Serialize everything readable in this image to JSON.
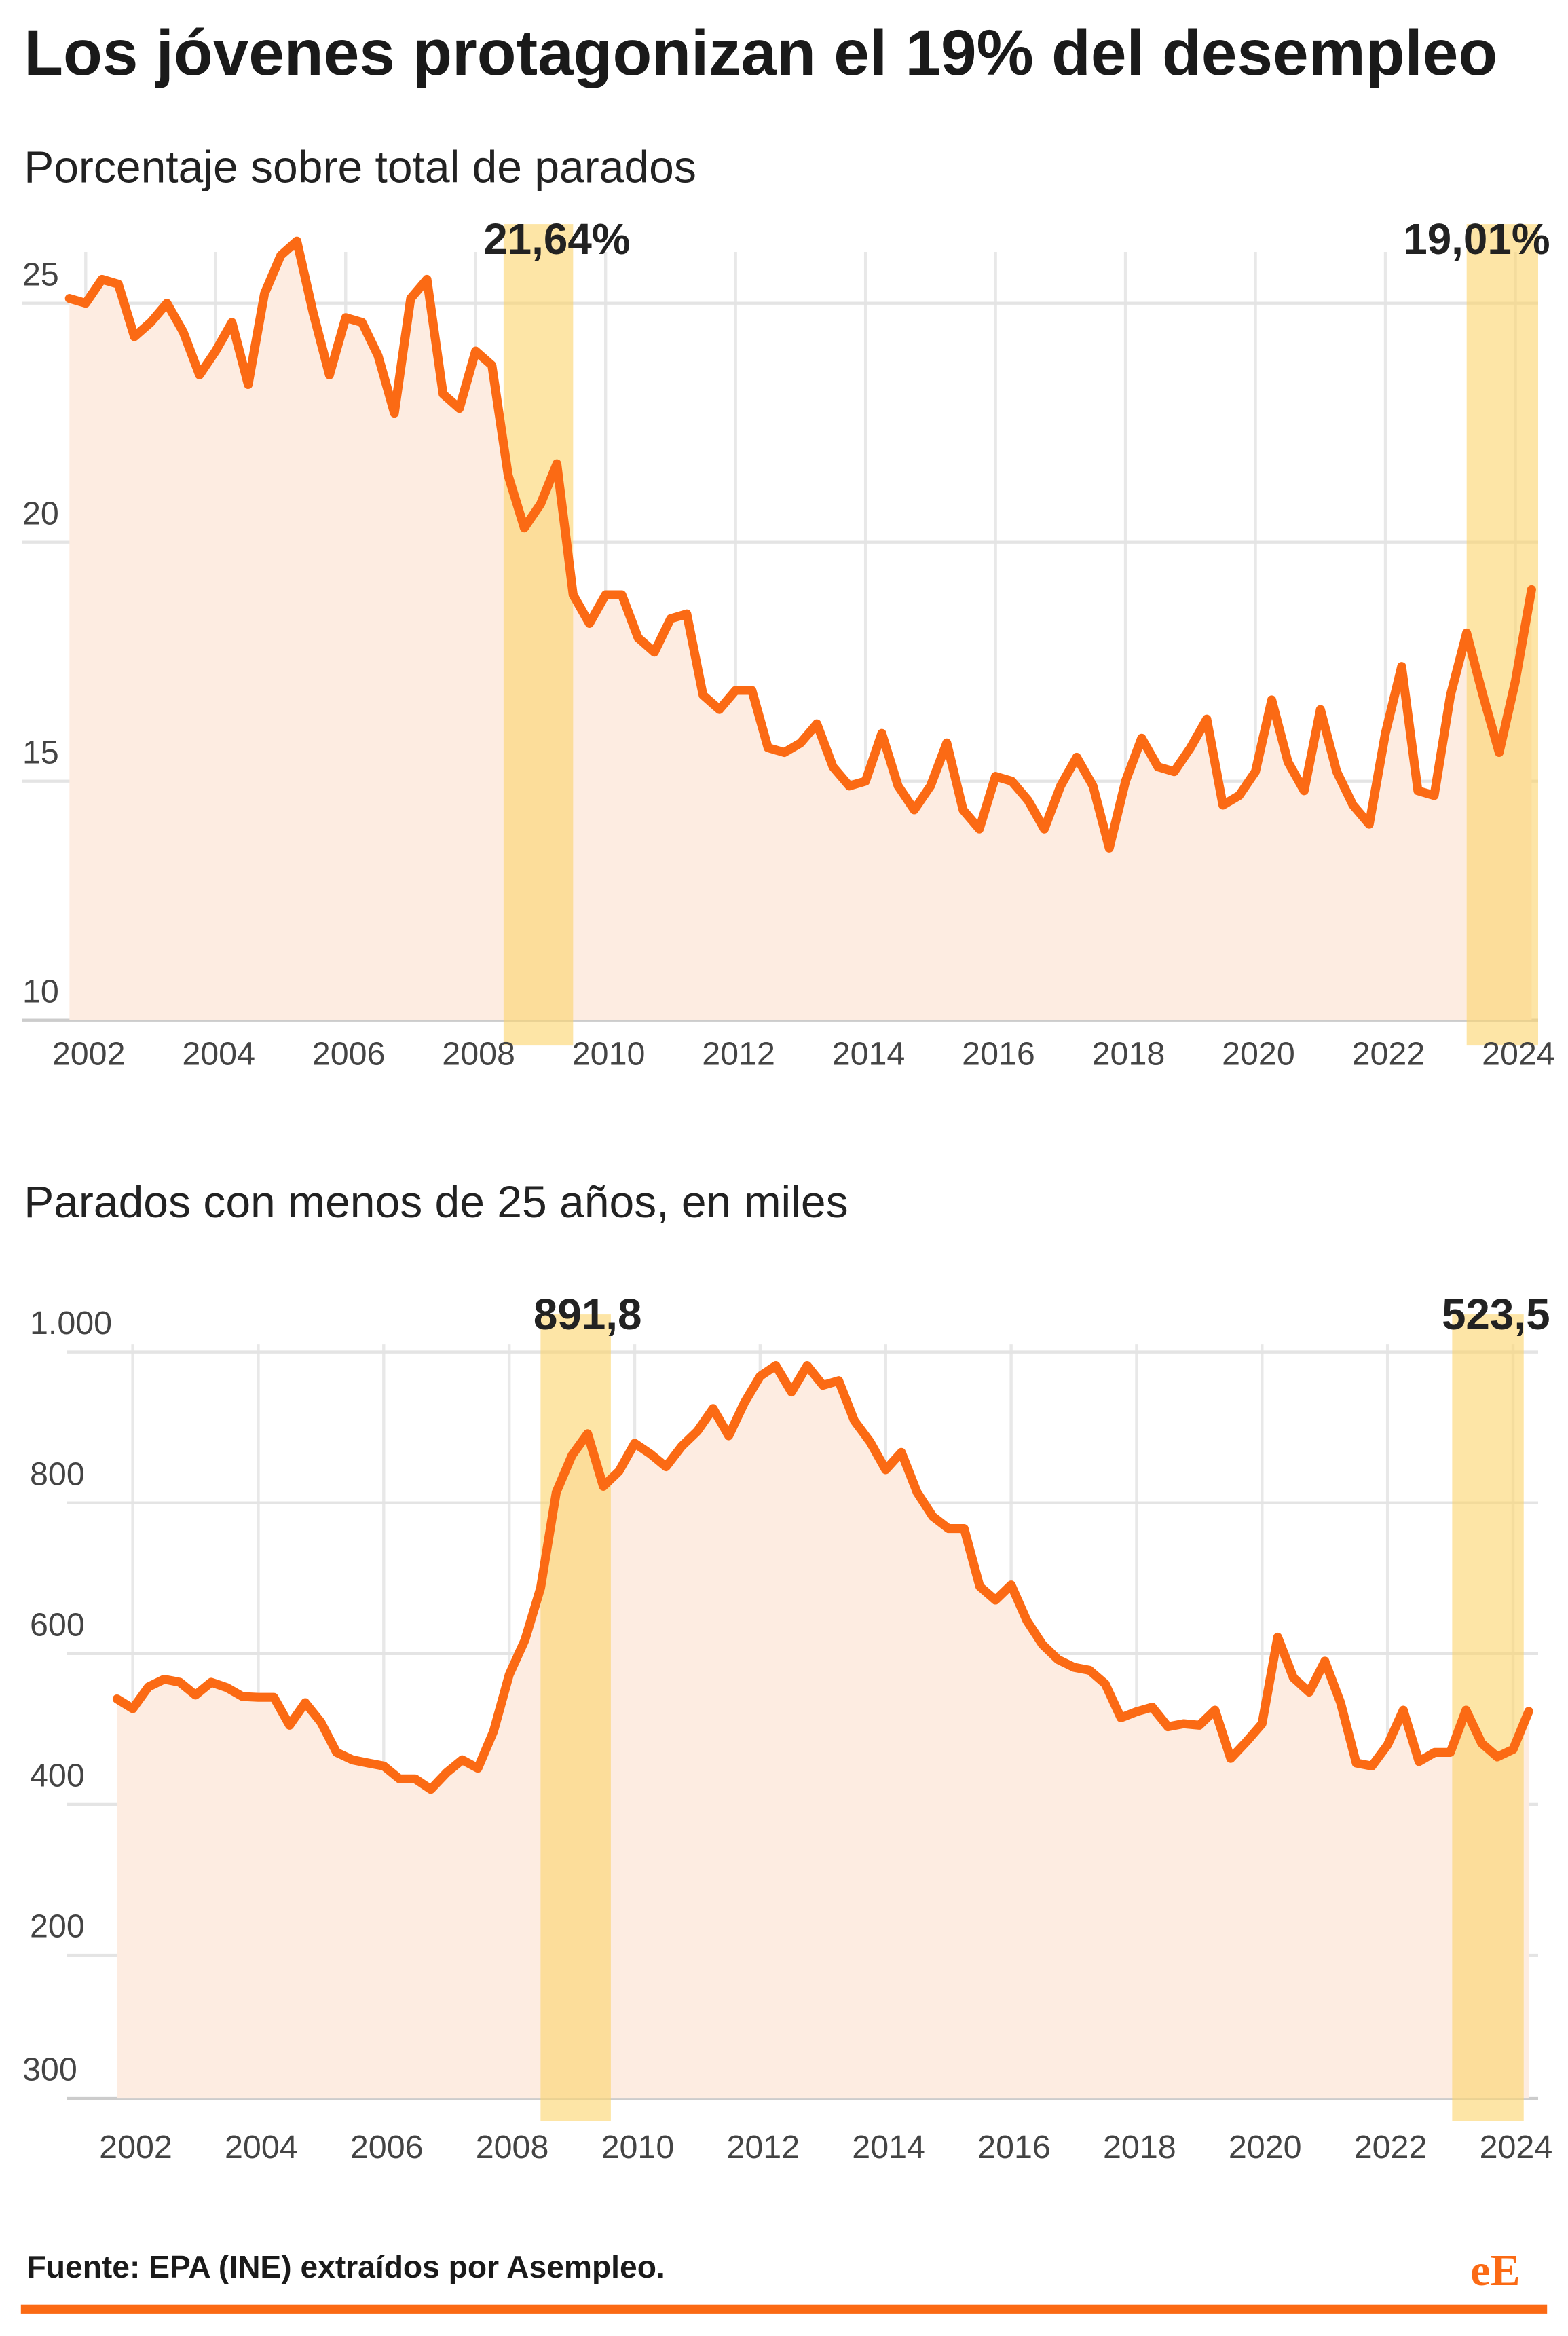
{
  "title": "Los jóvenes protagonizan el 19% del desempleo",
  "source": "Fuente: EPA (INE) extraídos por Asempleo.",
  "logo": "eE",
  "chart_data": [
    {
      "type": "line",
      "subtitle": "Porcentaje sobre total de parados",
      "x": [
        2001.75,
        2002,
        2002.25,
        2002.5,
        2002.75,
        2003,
        2003.25,
        2003.5,
        2003.75,
        2004,
        2004.25,
        2004.5,
        2004.75,
        2005,
        2005.25,
        2005.5,
        2005.75,
        2006,
        2006.25,
        2006.5,
        2006.75,
        2007,
        2007.25,
        2007.5,
        2007.75,
        2008,
        2008.25,
        2008.5,
        2008.75,
        2009,
        2009.25,
        2009.5,
        2009.75,
        2010,
        2010.25,
        2010.5,
        2010.75,
        2011,
        2011.25,
        2011.5,
        2011.75,
        2012,
        2012.25,
        2012.5,
        2012.75,
        2013,
        2013.25,
        2013.5,
        2013.75,
        2014,
        2014.25,
        2014.5,
        2014.75,
        2015,
        2015.25,
        2015.5,
        2015.75,
        2016,
        2016.25,
        2016.5,
        2016.75,
        2017,
        2017.25,
        2017.5,
        2017.75,
        2018,
        2018.25,
        2018.5,
        2018.75,
        2019,
        2019.25,
        2019.5,
        2019.75,
        2020,
        2020.25,
        2020.5,
        2020.75,
        2021,
        2021.25,
        2021.5,
        2021.75,
        2022,
        2022.25,
        2022.5,
        2022.75,
        2023,
        2023.25,
        2023.5,
        2023.75,
        2024,
        2024.25
      ],
      "series": [
        {
          "color": "#fb6a14",
          "area_color": "#fdece1",
          "values": [
            25.1,
            25.0,
            25.5,
            25.4,
            24.3,
            24.6,
            25.0,
            24.4,
            23.5,
            24.0,
            24.6,
            23.3,
            25.2,
            26.0,
            26.3,
            24.8,
            23.5,
            24.7,
            24.6,
            23.9,
            22.7,
            25.1,
            25.5,
            23.1,
            22.8,
            24.0,
            23.7,
            21.4,
            20.3,
            20.8,
            21.64,
            18.9,
            18.3,
            18.9,
            18.9,
            18.0,
            17.7,
            18.4,
            18.5,
            16.8,
            16.5,
            16.9,
            16.9,
            15.7,
            15.6,
            15.8,
            16.2,
            15.3,
            14.9,
            15.0,
            16.0,
            14.9,
            14.4,
            14.9,
            15.8,
            14.4,
            14.0,
            15.1,
            15.0,
            14.6,
            14.0,
            14.9,
            15.5,
            14.9,
            13.6,
            15.0,
            15.9,
            15.3,
            15.2,
            15.7,
            16.3,
            14.5,
            14.7,
            15.2,
            16.7,
            15.4,
            14.8,
            16.5,
            15.2,
            14.5,
            14.1,
            16.0,
            17.4,
            14.8,
            14.7,
            16.8,
            18.1,
            16.8,
            15.6,
            17.1,
            19.01
          ],
          "value_labels": [
            null,
            null,
            null,
            null,
            null,
            null,
            null,
            null,
            null,
            null,
            null,
            null,
            null,
            null,
            null,
            null,
            null,
            null,
            null,
            null,
            null,
            null,
            null,
            null,
            null,
            null,
            null,
            null,
            null,
            null,
            "21,64%",
            null,
            null,
            null,
            null,
            null,
            null,
            null,
            null,
            null,
            null,
            null,
            null,
            null,
            null,
            null,
            null,
            null,
            null,
            null,
            null,
            null,
            null,
            null,
            null,
            null,
            null,
            null,
            null,
            null,
            null,
            null,
            null,
            null,
            null,
            null,
            null,
            null,
            null,
            null,
            null,
            null,
            null,
            null,
            null,
            null,
            null,
            null,
            null,
            null,
            null,
            null,
            null,
            null,
            null,
            null,
            null,
            null,
            null,
            null,
            "19,01%"
          ]
        }
      ],
      "highlights": [
        {
          "x": [
            2008.43,
            2009.5
          ]
        },
        {
          "x": [
            2023.25,
            2024.35
          ]
        }
      ],
      "highlight_color": "#fbd36b",
      "xlim": [
        2001.6,
        2024.35
      ],
      "xticks": [
        2002,
        2004,
        2006,
        2008,
        2010,
        2012,
        2014,
        2016,
        2018,
        2020,
        2022,
        2024
      ],
      "ylim": [
        10,
        26.7
      ],
      "yticks": [
        10,
        15,
        20,
        25
      ],
      "grid": true
    },
    {
      "type": "line",
      "subtitle": "Parados con menos de 25 años, en miles",
      "bottom_label": "300",
      "x": [
        2001.75,
        2002,
        2002.25,
        2002.5,
        2002.75,
        2003,
        2003.25,
        2003.5,
        2003.75,
        2004,
        2004.25,
        2004.5,
        2004.75,
        2005,
        2005.25,
        2005.5,
        2005.75,
        2006,
        2006.25,
        2006.5,
        2006.75,
        2007,
        2007.25,
        2007.5,
        2007.75,
        2008,
        2008.25,
        2008.5,
        2008.75,
        2009,
        2009.25,
        2009.5,
        2009.75,
        2010,
        2010.25,
        2010.5,
        2010.75,
        2011,
        2011.25,
        2011.5,
        2011.75,
        2012,
        2012.25,
        2012.5,
        2012.75,
        2013,
        2013.25,
        2013.5,
        2013.75,
        2014,
        2014.25,
        2014.5,
        2014.75,
        2015,
        2015.25,
        2015.5,
        2015.75,
        2016,
        2016.25,
        2016.5,
        2016.75,
        2017,
        2017.25,
        2017.5,
        2017.75,
        2018,
        2018.25,
        2018.5,
        2018.75,
        2019,
        2019.25,
        2019.5,
        2019.75,
        2020,
        2020.25,
        2020.5,
        2020.75,
        2021,
        2021.25,
        2021.5,
        2021.75,
        2022,
        2022.25,
        2022.5,
        2022.75,
        2023,
        2023.25,
        2023.5,
        2023.75,
        2024,
        2024.25
      ],
      "series": [
        {
          "color": "#fb6a14",
          "area_color": "#fdece1",
          "values": [
            540,
            527,
            556,
            566,
            562,
            545,
            562,
            555,
            543,
            542,
            542,
            505,
            535,
            509,
            469,
            459,
            455,
            451,
            434,
            434,
            420,
            442,
            459,
            448,
            497,
            572,
            618,
            687,
            814,
            863,
            891.8,
            822,
            842,
            879,
            865,
            848,
            875,
            895,
            925,
            889,
            933,
            968,
            982,
            947,
            982,
            956,
            962,
            909,
            881,
            844,
            867,
            814,
            782,
            766,
            766,
            689,
            671,
            691,
            644,
            612,
            592,
            582,
            578,
            560,
            515,
            523,
            529,
            503,
            507,
            505,
            525,
            461,
            483,
            507,
            622,
            568,
            549,
            590,
            535,
            455,
            451,
            479,
            525,
            457,
            469,
            469,
            525,
            481,
            463,
            473,
            523.5
          ],
          "value_labels": [
            null,
            null,
            null,
            null,
            null,
            null,
            null,
            null,
            null,
            null,
            null,
            null,
            null,
            null,
            null,
            null,
            null,
            null,
            null,
            null,
            null,
            null,
            null,
            null,
            null,
            null,
            null,
            null,
            null,
            null,
            "891,8",
            null,
            null,
            null,
            null,
            null,
            null,
            null,
            null,
            null,
            null,
            null,
            null,
            null,
            null,
            null,
            null,
            null,
            null,
            null,
            null,
            null,
            null,
            null,
            null,
            null,
            null,
            null,
            null,
            null,
            null,
            null,
            null,
            null,
            null,
            null,
            null,
            null,
            null,
            null,
            null,
            null,
            null,
            null,
            null,
            null,
            null,
            null,
            null,
            null,
            null,
            null,
            null,
            null,
            null,
            null,
            null,
            null,
            null,
            null,
            "523,5"
          ]
        }
      ],
      "highlights": [
        {
          "x": [
            2008.5,
            2009.62
          ]
        },
        {
          "x": [
            2023.03,
            2024.17
          ]
        }
      ],
      "highlight_color": "#fbd36b",
      "xlim": [
        2001.55,
        2024.4
      ],
      "xticks": [
        2002,
        2004,
        2006,
        2008,
        2010,
        2012,
        2014,
        2016,
        2018,
        2020,
        2022,
        2024
      ],
      "ylim": [
        10,
        1050
      ],
      "yticks": [
        200,
        400,
        600,
        800,
        {
          "value": 1000,
          "label": "1.000"
        }
      ],
      "grid": true
    }
  ]
}
